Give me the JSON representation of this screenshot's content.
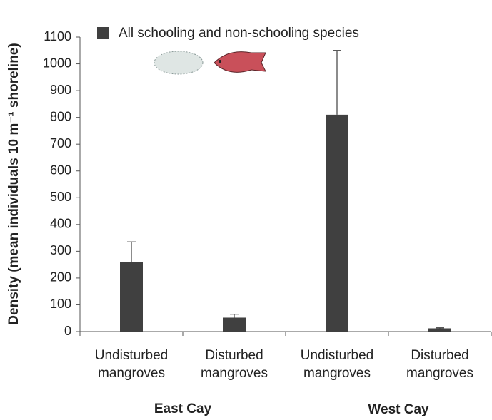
{
  "chart_data": {
    "type": "bar",
    "y_label": "Density (mean individuals 10 m⁻¹ shoreline)",
    "categories": [
      "Undisturbed mangroves",
      "Disturbed mangroves",
      "Undisturbed mangroves",
      "Disturbed mangroves"
    ],
    "group_labels": [
      "East Cay",
      "West Cay"
    ],
    "series": [
      {
        "name": "All schooling and non-schooling species",
        "color": "#404040",
        "values": [
          260,
          52,
          810,
          12
        ],
        "errors": [
          75,
          13,
          240,
          2
        ]
      }
    ],
    "ylim": [
      0,
      1100
    ],
    "yticks": [
      0,
      100,
      200,
      300,
      400,
      500,
      600,
      700,
      800,
      900,
      1000,
      1100
    ]
  }
}
